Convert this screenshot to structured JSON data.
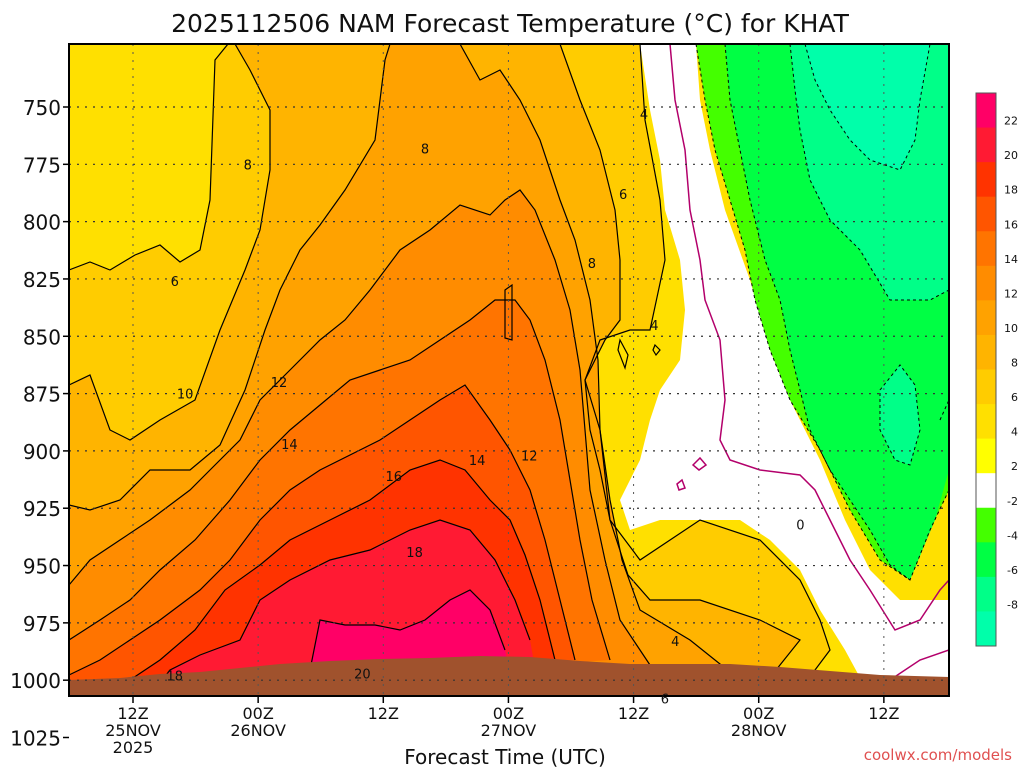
{
  "chart_data": {
    "type": "contour",
    "title": "2025112506 NAM Forecast Temperature (°C) for KHAT",
    "xlabel": "Forecast Time (UTC)",
    "credit": "coolwx.com/models",
    "y_axis": {
      "scale": "pressure",
      "ticks": [
        "750",
        "775",
        "800",
        "825",
        "850",
        "875",
        "900",
        "925",
        "950",
        "975",
        "1000",
        "1025"
      ]
    },
    "x_axis": {
      "ticks": [
        {
          "hour": 12,
          "line1": "12Z",
          "line2": "25NOV",
          "line3": "2025"
        },
        {
          "hour": 24,
          "line1": "00Z",
          "line2": "26NOV",
          "line3": ""
        },
        {
          "hour": 36,
          "line1": "12Z",
          "line2": "",
          "line3": ""
        },
        {
          "hour": 48,
          "line1": "00Z",
          "line2": "27NOV",
          "line3": ""
        },
        {
          "hour": 60,
          "line1": "12Z",
          "line2": "",
          "line3": ""
        },
        {
          "hour": 72,
          "line1": "00Z",
          "line2": "28NOV",
          "line3": ""
        },
        {
          "hour": 84,
          "line1": "12Z",
          "line2": "",
          "line3": ""
        }
      ]
    },
    "colorbar": {
      "labels": [
        "22",
        "20",
        "18",
        "16",
        "14",
        "12",
        "10",
        "8",
        "6",
        "4",
        "2",
        "-2",
        "-4",
        "-6",
        "-8"
      ],
      "colors": [
        "#ff0066",
        "#ff1a33",
        "#ff3300",
        "#ff5500",
        "#ff7400",
        "#ff8c00",
        "#ffa200",
        "#ffb400",
        "#ffcc00",
        "#ffe000",
        "#ffff00",
        "#ffffff",
        "#44ff00",
        "#00ff44",
        "#00ff88",
        "#00ffaa"
      ]
    },
    "contour_labels": [
      {
        "text": "4",
        "hour": 61,
        "pressure": 753
      },
      {
        "text": "6",
        "hour": 59,
        "pressure": 788
      },
      {
        "text": "8",
        "hour": 40,
        "pressure": 768
      },
      {
        "text": "8",
        "hour": 23,
        "pressure": 775
      },
      {
        "text": "8",
        "hour": 56,
        "pressure": 818
      },
      {
        "text": "6",
        "hour": 16,
        "pressure": 826
      },
      {
        "text": "4",
        "hour": 62,
        "pressure": 845
      },
      {
        "text": "12",
        "hour": 26,
        "pressure": 870
      },
      {
        "text": "10",
        "hour": 17,
        "pressure": 875
      },
      {
        "text": "14",
        "hour": 27,
        "pressure": 897
      },
      {
        "text": "16",
        "hour": 37,
        "pressure": 911
      },
      {
        "text": "14",
        "hour": 45,
        "pressure": 904
      },
      {
        "text": "12",
        "hour": 50,
        "pressure": 902
      },
      {
        "text": "18",
        "hour": 39,
        "pressure": 944
      },
      {
        "text": "0",
        "hour": 76,
        "pressure": 932
      },
      {
        "text": "4",
        "hour": 64,
        "pressure": 983
      },
      {
        "text": "18",
        "hour": 16,
        "pressure": 998
      },
      {
        "text": "20",
        "hour": 34,
        "pressure": 997
      },
      {
        "text": "6",
        "hour": 63,
        "pressure": 1008
      }
    ]
  }
}
